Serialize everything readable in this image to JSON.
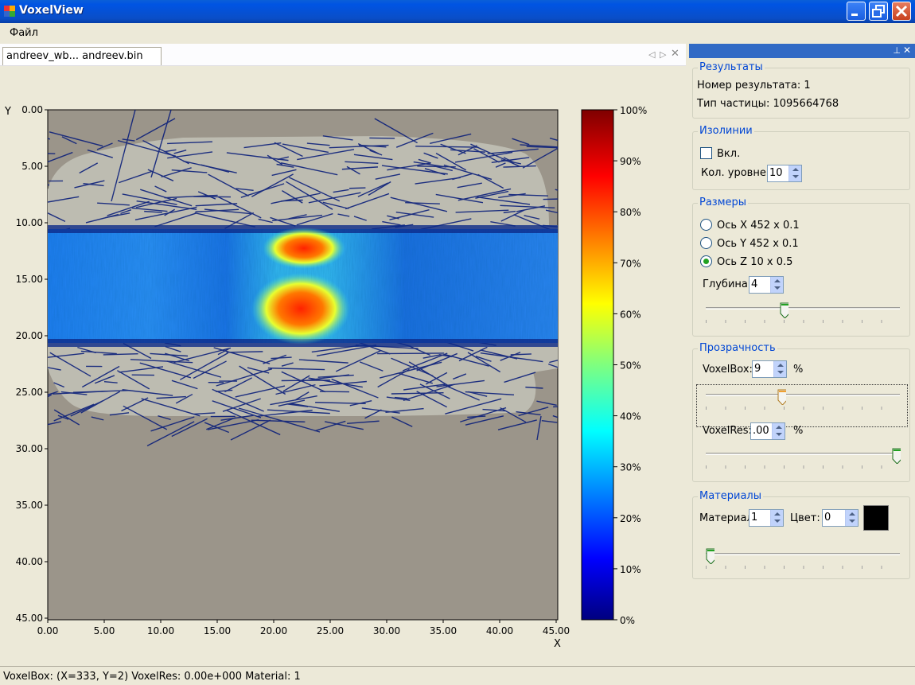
{
  "window": {
    "title": "VoxelView"
  },
  "menu": {
    "file": "Файл"
  },
  "doc": {
    "tab_label": "andreev_wb... andreev.bin"
  },
  "plot": {
    "y_axis_label": "Y",
    "x_axis_label": "X",
    "x_ticks": [
      "0.00",
      "5.00",
      "10.00",
      "15.00",
      "20.00",
      "25.00",
      "30.00",
      "35.00",
      "40.00",
      "45.00"
    ],
    "y_ticks": [
      "0.00",
      "5.00",
      "10.00",
      "15.00",
      "20.00",
      "25.00",
      "30.00",
      "35.00",
      "40.00",
      "45.00"
    ],
    "colorbar_ticks": [
      "100%",
      "90%",
      "80%",
      "70%",
      "60%",
      "50%",
      "40%",
      "30%",
      "20%",
      "10%",
      "0%"
    ]
  },
  "results": {
    "title": "Результаты",
    "number_line": "Номер результата: 1",
    "type_line": "Тип частицы: 1095664768"
  },
  "isolines": {
    "title": "Изолинии",
    "enabled_label": "Вкл.",
    "levels_label": "Кол. уровней",
    "levels_value": "10"
  },
  "sizes": {
    "title": "Размеры",
    "axis_x": "Ось X 452 x 0.1",
    "axis_y": "Ось Y 452 x 0.1",
    "axis_z": "Ось Z 10 x 0.5",
    "depth_label": "Глубина:",
    "depth_value": "4"
  },
  "transparency": {
    "title": "Прозрачность",
    "voxelbox_label": "VoxelBox:",
    "voxelbox_value": "9",
    "voxelres_label": "VoxelRes:",
    "voxelres_value": ".00",
    "pct": "%"
  },
  "materials": {
    "title": "Материалы",
    "material_label": "Материал",
    "material_value": "1",
    "color_label": "Цвет:",
    "color_value": "0",
    "swatch_color": "#000000"
  },
  "status": {
    "text": "VoxelBox: (X=333, Y=2) VoxelRes: 0.00e+000 Material: 1"
  }
}
